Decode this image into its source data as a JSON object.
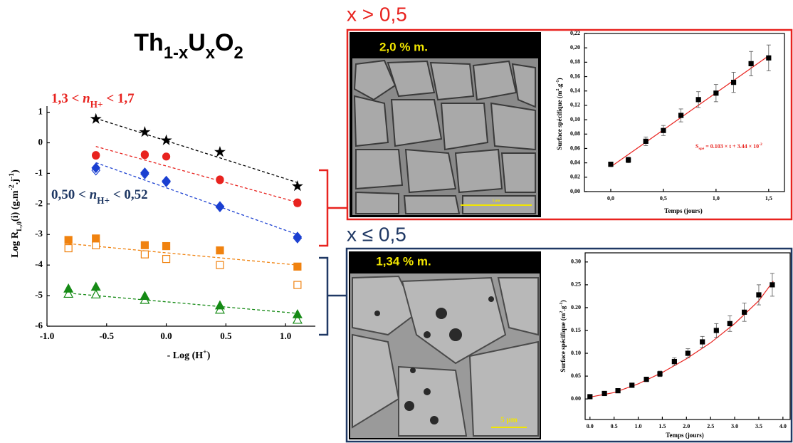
{
  "chart_data": [
    {
      "type": "scatter",
      "title": [
        {
          "t": "Th"
        },
        {
          "t": "1-x",
          "pos": "sub"
        },
        {
          "t": "U"
        },
        {
          "t": "x",
          "pos": "sub"
        },
        {
          "t": "O"
        },
        {
          "t": "2",
          "pos": "sub"
        }
      ],
      "xlabel": [
        {
          "t": "- Log (H"
        },
        {
          "t": "+",
          "pos": "super"
        },
        {
          "t": ")"
        }
      ],
      "ylabel": [
        {
          "t": "Log R"
        },
        {
          "t": "L,0",
          "pos": "sub"
        },
        {
          "t": "(i) (g.m"
        },
        {
          "t": "-2",
          "pos": "super"
        },
        {
          "t": ".j"
        },
        {
          "t": "-1",
          "pos": "super"
        },
        {
          "t": ")"
        }
      ],
      "annotations": [
        {
          "color": "#e8231f",
          "parts": [
            {
              "t": "1,3 < "
            },
            {
              "t": "n",
              "style": "italic"
            },
            {
              "t": "H+",
              "pos": "sub"
            },
            {
              "t": " < 1,7"
            }
          ]
        },
        {
          "color": "#1f3864",
          "parts": [
            {
              "t": "0,50 < "
            },
            {
              "t": "n",
              "style": "italic"
            },
            {
              "t": "H+",
              "pos": "sub"
            },
            {
              "t": " < 0,52"
            }
          ]
        }
      ],
      "xlim": [
        -1,
        1.25
      ],
      "xticks": [
        {
          "value": -1,
          "label": "-1.0"
        },
        {
          "value": -0.5,
          "label": "-0.5"
        },
        {
          "value": 0,
          "label": "0.0"
        },
        {
          "value": 0.5,
          "label": "0.5"
        },
        {
          "value": 1,
          "label": "1.0"
        }
      ],
      "ylim": [
        -6,
        1.2
      ],
      "yticks": [
        1,
        0,
        -1,
        -2,
        -3,
        -4,
        -5,
        -6
      ],
      "series": [
        {
          "color": "#000000",
          "line": "dashed",
          "marker": "none",
          "x": [
            -0.59,
            1.1
          ],
          "values": [
            0.8,
            -1.3
          ]
        },
        {
          "color": "#e8231f",
          "line": "dashed",
          "marker": "none",
          "x": [
            -0.59,
            1.1
          ],
          "values": [
            -0.12,
            -1.95
          ]
        },
        {
          "color": "#1a3fd1",
          "line": "dashed",
          "marker": "none",
          "x": [
            -0.59,
            1.1
          ],
          "values": [
            -0.65,
            -3.0
          ]
        },
        {
          "color": "#f0820f",
          "line": "dashed",
          "marker": "none",
          "x": [
            -0.82,
            1.1
          ],
          "values": [
            -3.3,
            -4.0
          ]
        },
        {
          "color": "#158a15",
          "line": "dashed",
          "marker": "none",
          "x": [
            -0.82,
            1.1
          ],
          "values": [
            -4.92,
            -5.58
          ]
        },
        {
          "color": "#e8231f",
          "marker": "circle",
          "filled": false,
          "x": [
            -0.59,
            -0.18,
            0.45,
            1.1
          ],
          "values": [
            -0.42,
            -0.4,
            -1.22,
            -1.98
          ]
        },
        {
          "color": "#1a3fd1",
          "marker": "diamond",
          "filled": false,
          "x": [
            -0.59,
            -0.18,
            0,
            0.45,
            1.1
          ],
          "values": [
            -0.9,
            -1.02,
            -1.28,
            -2.1,
            -3.12
          ]
        },
        {
          "color": "#f0820f",
          "marker": "square",
          "filled": false,
          "x": [
            -0.82,
            -0.59,
            -0.18,
            0,
            0.45,
            1.1
          ],
          "values": [
            -3.45,
            -3.35,
            -3.65,
            -3.8,
            -4.0,
            -4.65
          ]
        },
        {
          "color": "#158a15",
          "marker": "triangle",
          "filled": false,
          "x": [
            -0.82,
            -0.59,
            -0.18,
            0.45,
            1.1
          ],
          "values": [
            -4.95,
            -4.97,
            -5.15,
            -5.47,
            -5.8
          ]
        },
        {
          "color": "#000000",
          "marker": "star",
          "filled": true,
          "x": [
            -0.59,
            -0.18,
            0,
            0.45,
            1.1
          ],
          "values": [
            0.78,
            0.35,
            0.08,
            -0.3,
            -1.42
          ]
        },
        {
          "color": "#e8231f",
          "marker": "circle",
          "filled": true,
          "x": [
            -0.59,
            -0.18,
            0,
            0.45,
            1.1
          ],
          "values": [
            -0.4,
            -0.38,
            -0.45,
            -1.2,
            -1.95
          ]
        },
        {
          "color": "#1a3fd1",
          "marker": "diamond",
          "filled": true,
          "x": [
            -0.59,
            -0.18,
            0,
            0.45,
            1.1
          ],
          "values": [
            -0.82,
            -0.98,
            -1.25,
            -2.08,
            -3.08
          ]
        },
        {
          "color": "#f0820f",
          "marker": "square",
          "filled": true,
          "x": [
            -0.82,
            -0.59,
            -0.18,
            0,
            0.45,
            1.1
          ],
          "values": [
            -3.18,
            -3.13,
            -3.35,
            -3.38,
            -3.52,
            -4.05
          ]
        },
        {
          "color": "#158a15",
          "marker": "triangle",
          "filled": true,
          "x": [
            -0.82,
            -0.59,
            -0.18,
            0.45,
            1.1
          ],
          "values": [
            -4.78,
            -4.72,
            -5.02,
            -5.33,
            -5.62
          ]
        }
      ]
    },
    {
      "type": "scatter",
      "heading": "x > 0,5",
      "frame_color": "#e8231f",
      "image_label": "2,0 % m.",
      "scale_label": "5 µm",
      "xlabel": [
        {
          "t": "Temps (jours)"
        }
      ],
      "ylabel": [
        {
          "t": "Surface spécifique (m"
        },
        {
          "t": "2",
          "pos": "super"
        },
        {
          "t": ".g"
        },
        {
          "t": "-1",
          "pos": "super"
        },
        {
          "t": ")"
        }
      ],
      "annotations": [
        {
          "color": "#e8231f",
          "parts": [
            {
              "t": "S"
            },
            {
              "t": "spé",
              "pos": "sub"
            },
            {
              "t": " = 0.103 × t + 3.44 × 10"
            },
            {
              "t": "-2",
              "pos": "super"
            }
          ]
        }
      ],
      "xlim": [
        -0.25,
        1.65
      ],
      "xticks": [
        {
          "value": 0,
          "label": "0,0"
        },
        {
          "value": 0.5,
          "label": "0,5"
        },
        {
          "value": 1,
          "label": "1,0"
        },
        {
          "value": 1.5,
          "label": "1,5"
        }
      ],
      "ylim": [
        0,
        0.22
      ],
      "yticks": [
        {
          "value": 0,
          "label": "0,00"
        },
        {
          "value": 0.02,
          "label": "0,02"
        },
        {
          "value": 0.04,
          "label": "0,04"
        },
        {
          "value": 0.06,
          "label": "0,06"
        },
        {
          "value": 0.08,
          "label": "0,08"
        },
        {
          "value": 0.1,
          "label": "0,10"
        },
        {
          "value": 0.12,
          "label": "0,12"
        },
        {
          "value": 0.14,
          "label": "0,14"
        },
        {
          "value": 0.16,
          "label": "0,16"
        },
        {
          "value": 0.18,
          "label": "0,18"
        },
        {
          "value": 0.2,
          "label": "0,20"
        },
        {
          "value": 0.22,
          "label": "0,22"
        }
      ],
      "series": [
        {
          "color": "#e8231f",
          "line": "solid",
          "marker": "none",
          "x": [
            0,
            1.5
          ],
          "values": [
            0.0344,
            0.1889
          ]
        },
        {
          "color": "#000000",
          "marker": "square",
          "filled": true,
          "x": [
            0,
            0.167,
            0.333,
            0.5,
            0.667,
            0.833,
            1.0,
            1.167,
            1.333,
            1.5
          ],
          "values": [
            0.038,
            0.044,
            0.07,
            0.085,
            0.106,
            0.128,
            0.137,
            0.152,
            0.178,
            0.186
          ],
          "errors": [
            0.003,
            0.004,
            0.006,
            0.007,
            0.009,
            0.011,
            0.012,
            0.014,
            0.017,
            0.018
          ]
        }
      ]
    },
    {
      "type": "scatter",
      "heading": "x ≤ 0,5",
      "frame_color": "#1f3864",
      "image_label": "1,34 % m.",
      "scale_label": "5 µm",
      "xlabel": [
        {
          "t": "Temps (jours)"
        }
      ],
      "ylabel": [
        {
          "t": "Surface spécifique (m"
        },
        {
          "t": "2",
          "pos": "super"
        },
        {
          "t": ".g"
        },
        {
          "t": "-1",
          "pos": "super"
        },
        {
          "t": ")"
        }
      ],
      "xlim": [
        -0.1,
        4.15
      ],
      "xticks": [
        {
          "value": 0,
          "label": "0.0"
        },
        {
          "value": 0.5,
          "label": "0.5"
        },
        {
          "value": 1,
          "label": "1.0"
        },
        {
          "value": 1.5,
          "label": "1.5"
        },
        {
          "value": 2,
          "label": "2.0"
        },
        {
          "value": 2.5,
          "label": "2.5"
        },
        {
          "value": 3,
          "label": "3.0"
        },
        {
          "value": 3.5,
          "label": "3.5"
        },
        {
          "value": 4,
          "label": "4.0"
        }
      ],
      "ylim": [
        -0.045,
        0.32
      ],
      "yticks": [
        {
          "value": 0,
          "label": "0.00"
        },
        {
          "value": 0.05,
          "label": "0.05"
        },
        {
          "value": 0.1,
          "label": "0.10"
        },
        {
          "value": 0.15,
          "label": "0.15"
        },
        {
          "value": 0.2,
          "label": "0.20"
        },
        {
          "value": 0.25,
          "label": "0.25"
        },
        {
          "value": 0.3,
          "label": "0.30"
        }
      ],
      "series": [
        {
          "color": "#e8231f",
          "line": "solid",
          "marker": "none",
          "x": [
            0,
            0.5,
            1,
            1.5,
            2,
            2.5,
            3,
            3.5,
            3.8
          ],
          "values": [
            0.004,
            0.014,
            0.033,
            0.058,
            0.088,
            0.123,
            0.165,
            0.215,
            0.258
          ]
        },
        {
          "color": "#000000",
          "marker": "square",
          "filled": true,
          "x": [
            0,
            0.3,
            0.58,
            0.87,
            1.17,
            1.45,
            1.75,
            2.03,
            2.33,
            2.62,
            2.9,
            3.2,
            3.5,
            3.78
          ],
          "values": [
            0.005,
            0.012,
            0.018,
            0.03,
            0.043,
            0.055,
            0.082,
            0.1,
            0.125,
            0.15,
            0.165,
            0.19,
            0.228,
            0.25
          ],
          "errors": [
            0.003,
            0.003,
            0.004,
            0.004,
            0.005,
            0.006,
            0.008,
            0.01,
            0.012,
            0.015,
            0.017,
            0.02,
            0.022,
            0.025
          ]
        }
      ]
    }
  ]
}
